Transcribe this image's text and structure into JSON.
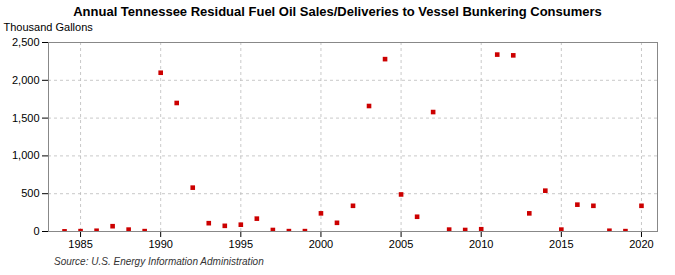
{
  "chart_data": {
    "type": "scatter",
    "title": "Annual Tennessee Residual Fuel Oil Sales/Deliveries to Vessel Bunkering Consumers",
    "ylabel": "Thousand Gallons",
    "source": "Source: U.S. Energy Information Administration",
    "x": [
      1984,
      1985,
      1986,
      1987,
      1988,
      1989,
      1990,
      1991,
      1992,
      1993,
      1994,
      1995,
      1996,
      1997,
      1998,
      1999,
      2000,
      2001,
      2002,
      2003,
      2004,
      2005,
      2006,
      2007,
      2008,
      2009,
      2010,
      2011,
      2012,
      2013,
      2014,
      2015,
      2016,
      2017,
      2018,
      2019,
      2020
    ],
    "values": [
      2,
      5,
      10,
      70,
      25,
      5,
      2100,
      1700,
      580,
      110,
      75,
      90,
      170,
      20,
      5,
      5,
      240,
      115,
      340,
      1660,
      2280,
      490,
      195,
      1580,
      25,
      20,
      30,
      2340,
      2330,
      240,
      540,
      25,
      355,
      340,
      10,
      5,
      340
    ],
    "color": "#cc0000",
    "marker": "square",
    "xlim": [
      1983,
      2021
    ],
    "xticks": [
      1985,
      1990,
      1995,
      2000,
      2005,
      2010,
      2015,
      2020
    ],
    "ylim": [
      0,
      2500
    ],
    "yticks": [
      0,
      500,
      {
        "value": 1000,
        "label": "1,000"
      },
      {
        "value": 1500,
        "label": "1,500"
      },
      {
        "value": 2000,
        "label": "2,000"
      },
      {
        "value": 2500,
        "label": "2,500"
      }
    ],
    "grid": true
  }
}
